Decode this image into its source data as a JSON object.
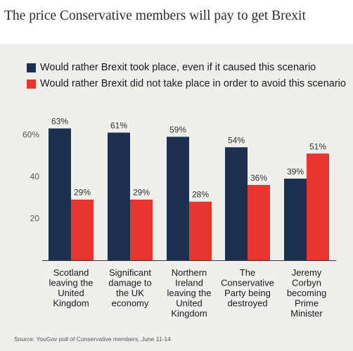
{
  "headline": "The price Conservative members will pay to get Brexit",
  "source": "Source: YouGov poll of Conservative members, June 11-14",
  "colors": {
    "took_place": "#1c3150",
    "not_take_place": "#e8352f",
    "panel": "#f0efeb"
  },
  "chart_data": {
    "type": "bar",
    "title": "",
    "xlabel": "",
    "ylabel": "",
    "ylim": [
      0,
      65
    ],
    "yticks": [
      20,
      40,
      60
    ],
    "ytick_labels": [
      "20",
      "40",
      "60%"
    ],
    "grid": false,
    "legend": "top-left",
    "categories": [
      [
        "Scotland",
        "leaving the",
        "United",
        "Kingdom"
      ],
      [
        "Significant",
        "damage to",
        "the UK",
        "economy"
      ],
      [
        "Northern",
        "Ireland",
        "leaving the",
        "United",
        "Kingdom"
      ],
      [
        "The",
        "Conservative",
        "Party being",
        "destroyed"
      ],
      [
        "Jeremy",
        "Corbyn",
        "becoming",
        "Prime",
        "Minister"
      ]
    ],
    "series": [
      {
        "name": "Would rather Brexit took place, even if it caused this scenario",
        "values": [
          63,
          61,
          59,
          54,
          39
        ],
        "labels": [
          "63%",
          "61%",
          "59%",
          "54%",
          "39%"
        ]
      },
      {
        "name": "Would rather Brexit did not take place in order to avoid this scenario",
        "values": [
          29,
          29,
          28,
          36,
          51
        ],
        "labels": [
          "29%",
          "29%",
          "28%",
          "36%",
          "51%"
        ]
      }
    ]
  }
}
